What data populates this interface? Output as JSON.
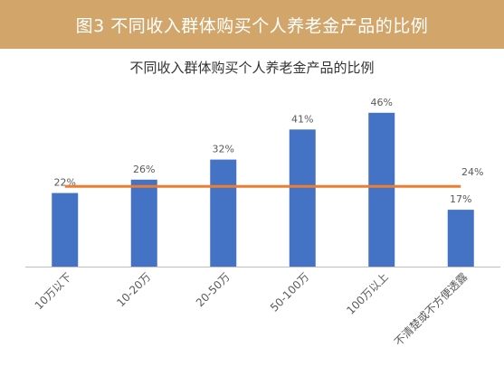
{
  "banner": {
    "title": "图3 不同收入群体购买个人养老金产品的比例"
  },
  "chart_data": {
    "type": "bar",
    "title": "不同收入群体购买个人养老金产品的比例",
    "categories": [
      "10万以下",
      "10-20万",
      "20-50万",
      "50-100万",
      "100万以上",
      "不清楚或不方便透露"
    ],
    "values": [
      22,
      26,
      32,
      41,
      46,
      17
    ],
    "data_labels": [
      "22%",
      "26%",
      "32%",
      "41%",
      "46%",
      "17%"
    ],
    "average": {
      "value": 24,
      "label": "24%"
    },
    "ylim": [
      0,
      50
    ],
    "grid": false,
    "colors": {
      "bar": "#4472c4",
      "average_line": "#ed7d31",
      "axis": "#bfbfbf",
      "label": "#595959"
    }
  }
}
